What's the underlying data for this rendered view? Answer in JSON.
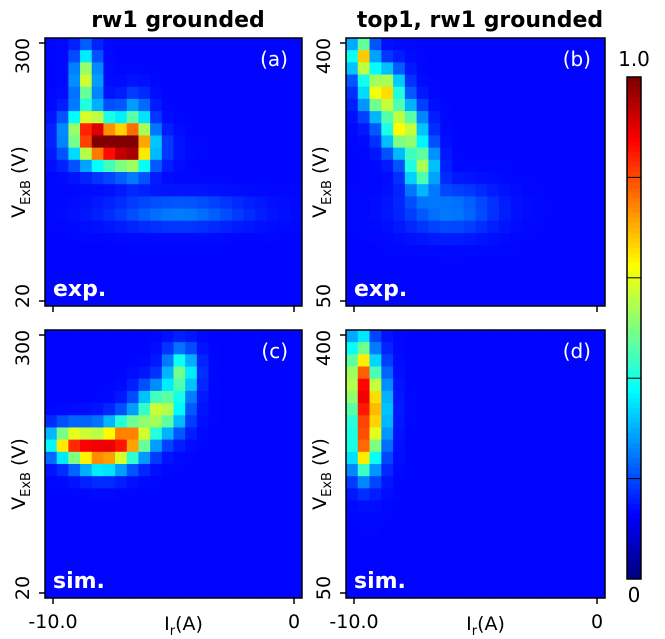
{
  "chart_data": [
    {
      "type": "heatmap",
      "id": "a",
      "column_title": "rw1 grounded",
      "panel_label": "(a)",
      "corner_label": "exp.",
      "ylabel_main": "V",
      "ylabel_sub": "ExB",
      "ylabel_unit": " (V)",
      "y_ticks": [
        "300",
        "20"
      ],
      "x_ticks": [],
      "ylim": [
        20,
        300
      ],
      "blobs": [
        {
          "x": 0.16,
          "y": 0.85,
          "sx": 0.03,
          "sy": 0.07,
          "a": 0.45
        },
        {
          "x": 0.18,
          "y": 0.66,
          "sx": 0.06,
          "sy": 0.05,
          "a": 0.6
        },
        {
          "x": 0.27,
          "y": 0.59,
          "sx": 0.09,
          "sy": 0.05,
          "a": 0.75
        },
        {
          "x": 0.35,
          "y": 0.63,
          "sx": 0.04,
          "sy": 0.08,
          "a": 0.45
        },
        {
          "x": 0.52,
          "y": 0.35,
          "sx": 0.18,
          "sy": 0.04,
          "a": 0.12
        }
      ]
    },
    {
      "type": "heatmap",
      "id": "b",
      "column_title": "top1, rw1 grounded",
      "panel_label": "(b)",
      "corner_label": "exp.",
      "ylabel_main": "V",
      "ylabel_sub": "ExB",
      "ylabel_unit": " (V)",
      "y_ticks": [
        "400",
        "50"
      ],
      "x_ticks": [],
      "ylim": [
        50,
        400
      ],
      "blobs": [
        {
          "x": 0.06,
          "y": 0.93,
          "sx": 0.03,
          "sy": 0.05,
          "a": 0.55
        },
        {
          "x": 0.14,
          "y": 0.8,
          "sx": 0.05,
          "sy": 0.06,
          "a": 0.55
        },
        {
          "x": 0.22,
          "y": 0.66,
          "sx": 0.05,
          "sy": 0.06,
          "a": 0.5
        },
        {
          "x": 0.29,
          "y": 0.52,
          "sx": 0.04,
          "sy": 0.06,
          "a": 0.4
        },
        {
          "x": 0.4,
          "y": 0.36,
          "sx": 0.12,
          "sy": 0.06,
          "a": 0.12
        }
      ]
    },
    {
      "type": "heatmap",
      "id": "c",
      "column_title": "",
      "panel_label": "(c)",
      "corner_label": "sim.",
      "ylabel_main": "V",
      "ylabel_sub": "ExB",
      "ylabel_unit": " (V)",
      "y_ticks": [
        "300",
        "20"
      ],
      "x_ticks": [
        "-10.0",
        "0"
      ],
      "xlabel_main": "I",
      "xlabel_sub": "r",
      "xlabel_unit": "(A)",
      "ylim": [
        20,
        300
      ],
      "xlim": [
        -10.0,
        0
      ],
      "blobs": [
        {
          "x": 0.1,
          "y": 0.58,
          "sx": 0.06,
          "sy": 0.04,
          "a": 0.55
        },
        {
          "x": 0.22,
          "y": 0.55,
          "sx": 0.07,
          "sy": 0.05,
          "a": 0.65
        },
        {
          "x": 0.33,
          "y": 0.6,
          "sx": 0.06,
          "sy": 0.05,
          "a": 0.55
        },
        {
          "x": 0.45,
          "y": 0.7,
          "sx": 0.06,
          "sy": 0.06,
          "a": 0.45
        },
        {
          "x": 0.53,
          "y": 0.84,
          "sx": 0.04,
          "sy": 0.06,
          "a": 0.35
        }
      ]
    },
    {
      "type": "heatmap",
      "id": "d",
      "column_title": "",
      "panel_label": "(d)",
      "corner_label": "sim.",
      "ylabel_main": "V",
      "ylabel_sub": "ExB",
      "ylabel_unit": " (V)",
      "y_ticks": [
        "400",
        "50"
      ],
      "x_ticks": [
        "-10.0",
        "0"
      ],
      "xlabel_main": "I",
      "xlabel_sub": "r",
      "xlabel_unit": "(A)",
      "ylim": [
        50,
        400
      ],
      "xlim": [
        -10.0,
        0
      ],
      "blobs": [
        {
          "x": 0.05,
          "y": 0.82,
          "sx": 0.03,
          "sy": 0.12,
          "a": 0.55
        },
        {
          "x": 0.1,
          "y": 0.7,
          "sx": 0.04,
          "sy": 0.12,
          "a": 0.55
        },
        {
          "x": 0.06,
          "y": 0.55,
          "sx": 0.03,
          "sy": 0.07,
          "a": 0.4
        }
      ]
    }
  ],
  "colorbar": {
    "max_label": "1.0",
    "min_label": "0",
    "range": [
      0,
      1.0
    ],
    "colormap": "jet"
  }
}
